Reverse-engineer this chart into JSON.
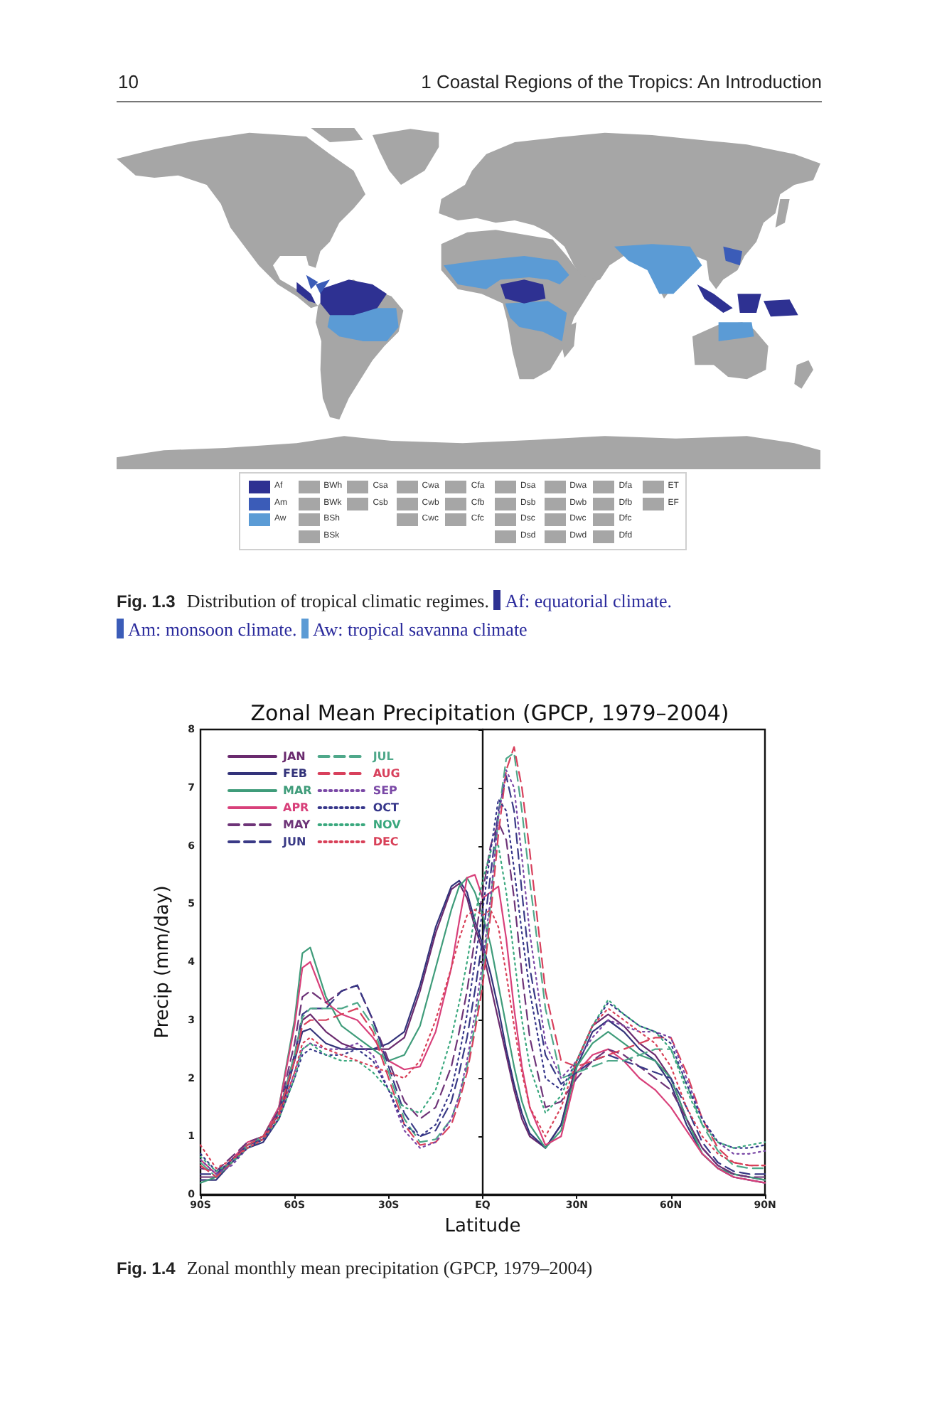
{
  "chart_data": [
    {
      "type": "other",
      "categories": [
        "Af",
        "Am",
        "Aw",
        null,
        "BWh",
        "BWk",
        "BSh",
        "BSk",
        "Csa",
        "Csb",
        null,
        null,
        "Cwa",
        "Cwb",
        "Cwc",
        null,
        "Cfa",
        "Cfb",
        "Cfc",
        null,
        "Dsa",
        "Dsb",
        "Dsc",
        "Dsd",
        "Dwa",
        "Dwb",
        "Dwc",
        "Dwd",
        "Dfa",
        "Dfb",
        "Dfc",
        "Dfd",
        "ET",
        "EF",
        null,
        null
      ],
      "colors": [
        "#2e3192",
        "#3b5cb8",
        "#5b9bd5",
        null,
        "#a6a6a6",
        "#a6a6a6",
        "#a6a6a6",
        "#a6a6a6",
        "#a6a6a6",
        "#a6a6a6",
        null,
        null,
        "#a6a6a6",
        "#a6a6a6",
        "#a6a6a6",
        null,
        "#a6a6a6",
        "#a6a6a6",
        "#a6a6a6",
        null,
        "#a6a6a6",
        "#a6a6a6",
        "#a6a6a6",
        "#a6a6a6",
        "#a6a6a6",
        "#a6a6a6",
        "#a6a6a6",
        "#a6a6a6",
        "#a6a6a6",
        "#a6a6a6",
        "#a6a6a6",
        "#a6a6a6",
        "#a6a6a6",
        "#a6a6a6",
        null,
        null
      ],
      "annotations": [
        "10",
        "1 Coastal Regions of the Tropics: An Introduction",
        "Fig. 1.3",
        "Distribution of tropical climatic regimes.",
        "Af: equatorial climate.",
        "Am: monsoon climate.",
        "Aw: tropical savanna climate"
      ]
    },
    {
      "type": "line",
      "title": "Zonal Mean Precipitation (GPCP, 1979–2004)",
      "xlabel": "Latitude",
      "ylabel": "Precip (mm/day)",
      "x": [
        -90,
        -85,
        -80,
        -75,
        -70,
        -65,
        -60,
        -57.5,
        -55,
        -50,
        -45,
        -40,
        -35,
        -30,
        -25,
        -20,
        -15,
        -10,
        -7.5,
        -5,
        -2.5,
        0,
        2.5,
        5,
        7.5,
        10,
        12.5,
        15,
        20,
        25,
        30,
        35,
        40,
        45,
        50,
        55,
        60,
        65,
        70,
        75,
        80,
        85,
        90
      ],
      "xlim": [
        -90,
        90
      ],
      "xticks": [
        {
          "value": -90,
          "label": "90S"
        },
        {
          "value": -60,
          "label": "60S"
        },
        {
          "value": -30,
          "label": "30S"
        },
        {
          "value": 0,
          "label": "EQ"
        },
        {
          "value": 30,
          "label": "30N"
        },
        {
          "value": 60,
          "label": "60N"
        },
        {
          "value": 90,
          "label": "90N"
        }
      ],
      "ylim": [
        0,
        8
      ],
      "yticks": [
        0,
        1,
        2,
        3,
        4,
        5,
        6,
        7,
        8
      ],
      "legend": "top left",
      "series": [
        {
          "name": "JAN",
          "color": "#6a2a6e",
          "line_style": "solid",
          "values": [
            0.3,
            0.3,
            0.6,
            0.85,
            0.95,
            1.4,
            2.4,
            3.0,
            3.1,
            2.8,
            2.6,
            2.5,
            2.5,
            2.5,
            2.7,
            3.5,
            4.5,
            5.25,
            5.35,
            5.1,
            4.6,
            4.2,
            3.6,
            3.0,
            2.4,
            1.8,
            1.3,
            1.0,
            0.8,
            1.2,
            2.3,
            2.9,
            3.1,
            2.9,
            2.6,
            2.4,
            2.0,
            1.3,
            0.8,
            0.5,
            0.35,
            0.3,
            0.25
          ]
        },
        {
          "name": "FEB",
          "color": "#33337a",
          "line_style": "solid",
          "values": [
            0.25,
            0.25,
            0.55,
            0.8,
            0.9,
            1.3,
            2.3,
            2.8,
            2.85,
            2.6,
            2.5,
            2.5,
            2.5,
            2.6,
            2.8,
            3.6,
            4.6,
            5.3,
            5.4,
            5.2,
            4.7,
            4.3,
            3.8,
            3.2,
            2.5,
            1.9,
            1.4,
            1.05,
            0.8,
            1.2,
            2.2,
            2.8,
            3.0,
            2.8,
            2.5,
            2.3,
            1.9,
            1.2,
            0.7,
            0.45,
            0.3,
            0.25,
            0.2
          ]
        },
        {
          "name": "MAR",
          "color": "#3f9c7a",
          "line_style": "solid",
          "values": [
            0.2,
            0.3,
            0.55,
            0.85,
            1.0,
            1.5,
            3.0,
            4.15,
            4.25,
            3.4,
            2.9,
            2.7,
            2.5,
            2.3,
            2.4,
            2.9,
            3.9,
            4.9,
            5.3,
            5.45,
            5.2,
            4.8,
            4.3,
            3.6,
            2.9,
            2.2,
            1.6,
            1.2,
            0.8,
            1.1,
            2.2,
            2.6,
            2.8,
            2.6,
            2.4,
            2.3,
            2.0,
            1.3,
            0.7,
            0.45,
            0.35,
            0.3,
            0.25
          ]
        },
        {
          "name": "APR",
          "color": "#d8407a",
          "line_style": "solid",
          "values": [
            0.6,
            0.35,
            0.6,
            0.9,
            1.0,
            1.5,
            2.9,
            3.9,
            4.0,
            3.3,
            3.1,
            3.0,
            2.7,
            2.3,
            2.15,
            2.2,
            2.8,
            3.9,
            4.7,
            5.45,
            5.5,
            5.1,
            5.2,
            5.3,
            4.4,
            3.2,
            2.2,
            1.5,
            0.85,
            1.0,
            2.1,
            2.4,
            2.5,
            2.3,
            2.0,
            1.8,
            1.5,
            1.1,
            0.7,
            0.45,
            0.3,
            0.25,
            0.2
          ]
        },
        {
          "name": "MAY",
          "color": "#6e3478",
          "line_style": "dashed",
          "values": [
            0.45,
            0.4,
            0.65,
            0.9,
            1.0,
            1.45,
            2.6,
            3.4,
            3.5,
            3.3,
            3.5,
            3.6,
            3.0,
            2.3,
            1.6,
            1.3,
            1.5,
            2.2,
            2.8,
            3.5,
            4.4,
            5.2,
            6.0,
            6.4,
            6.1,
            5.1,
            3.8,
            2.7,
            1.5,
            1.6,
            2.0,
            2.3,
            2.5,
            2.4,
            2.2,
            2.0,
            1.8,
            1.3,
            0.8,
            0.5,
            0.35,
            0.3,
            0.3
          ]
        },
        {
          "name": "JUN",
          "color": "#3a3a86",
          "line_style": "dashed",
          "values": [
            0.35,
            0.35,
            0.6,
            0.85,
            0.95,
            1.4,
            2.4,
            3.1,
            3.2,
            3.2,
            3.5,
            3.6,
            3.0,
            2.2,
            1.4,
            1.0,
            1.1,
            1.6,
            2.1,
            2.7,
            3.5,
            4.4,
            5.5,
            6.6,
            7.2,
            6.6,
            5.2,
            3.9,
            2.4,
            1.9,
            2.1,
            2.3,
            2.4,
            2.3,
            2.2,
            2.1,
            2.0,
            1.5,
            0.9,
            0.55,
            0.4,
            0.35,
            0.35
          ]
        },
        {
          "name": "JUL",
          "color": "#4fa88a",
          "line_style": "dashed",
          "values": [
            0.55,
            0.3,
            0.55,
            0.85,
            1.0,
            1.4,
            2.4,
            3.05,
            3.2,
            3.2,
            3.2,
            3.3,
            2.9,
            2.1,
            1.3,
            0.9,
            0.95,
            1.3,
            1.7,
            2.2,
            2.9,
            3.8,
            5.0,
            6.5,
            7.5,
            7.6,
            6.6,
            5.4,
            3.2,
            2.0,
            2.1,
            2.2,
            2.3,
            2.3,
            2.4,
            2.5,
            2.5,
            1.9,
            1.2,
            0.75,
            0.5,
            0.45,
            0.45
          ]
        },
        {
          "name": "AUG",
          "color": "#d8405c",
          "line_style": "dashed",
          "values": [
            0.5,
            0.3,
            0.55,
            0.85,
            1.0,
            1.4,
            2.3,
            2.9,
            3.0,
            3.0,
            3.1,
            3.2,
            2.8,
            2.0,
            1.2,
            0.85,
            0.9,
            1.2,
            1.6,
            2.1,
            2.8,
            3.6,
            4.8,
            6.2,
            7.3,
            7.7,
            7.0,
            5.9,
            3.5,
            2.3,
            2.2,
            2.3,
            2.4,
            2.5,
            2.6,
            2.7,
            2.7,
            2.1,
            1.3,
            0.8,
            0.55,
            0.5,
            0.5
          ]
        },
        {
          "name": "SEP",
          "color": "#7a48a6",
          "line_style": "dotted",
          "values": [
            0.6,
            0.35,
            0.5,
            0.8,
            0.95,
            1.3,
            2.1,
            2.5,
            2.6,
            2.5,
            2.5,
            2.6,
            2.4,
            1.8,
            1.1,
            0.8,
            0.9,
            1.3,
            1.7,
            2.3,
            3.1,
            4.0,
            5.1,
            6.5,
            7.3,
            7.0,
            5.8,
            4.5,
            2.6,
            2.0,
            2.3,
            2.7,
            3.0,
            2.9,
            2.8,
            2.8,
            2.7,
            2.0,
            1.3,
            0.9,
            0.7,
            0.7,
            0.75
          ]
        },
        {
          "name": "OCT",
          "color": "#36368a",
          "line_style": "dotted",
          "values": [
            0.7,
            0.4,
            0.55,
            0.8,
            0.95,
            1.3,
            2.0,
            2.4,
            2.5,
            2.4,
            2.4,
            2.5,
            2.3,
            1.8,
            1.2,
            1.0,
            1.2,
            1.8,
            2.4,
            3.1,
            4.0,
            4.9,
            5.9,
            6.8,
            6.6,
            5.6,
            4.5,
            3.5,
            2.0,
            1.8,
            2.3,
            2.9,
            3.3,
            3.1,
            2.9,
            2.8,
            2.6,
            1.9,
            1.3,
            0.9,
            0.8,
            0.8,
            0.85
          ]
        },
        {
          "name": "NOV",
          "color": "#3aa87e",
          "line_style": "dotted",
          "values": [
            0.65,
            0.4,
            0.55,
            0.8,
            0.95,
            1.3,
            2.0,
            2.5,
            2.6,
            2.4,
            2.3,
            2.3,
            2.1,
            1.8,
            1.5,
            1.4,
            1.8,
            2.7,
            3.3,
            4.0,
            4.8,
            5.4,
            5.9,
            6.0,
            5.2,
            4.1,
            3.0,
            2.2,
            1.4,
            1.7,
            2.3,
            2.9,
            3.35,
            3.1,
            2.9,
            2.8,
            2.5,
            1.8,
            1.2,
            0.9,
            0.8,
            0.85,
            0.9
          ]
        },
        {
          "name": "DEC",
          "color": "#d84058",
          "line_style": "dotted",
          "values": [
            0.85,
            0.45,
            0.6,
            0.8,
            0.95,
            1.35,
            2.1,
            2.6,
            2.7,
            2.5,
            2.4,
            2.3,
            2.2,
            2.1,
            2.0,
            2.3,
            3.0,
            3.9,
            4.4,
            4.8,
            4.9,
            4.8,
            4.9,
            4.6,
            3.8,
            2.9,
            2.1,
            1.5,
            1.0,
            1.5,
            2.3,
            2.9,
            3.2,
            3.0,
            2.8,
            2.6,
            2.2,
            1.5,
            1.0,
            0.7,
            0.55,
            0.5,
            0.5
          ]
        }
      ],
      "annotations": [
        "Fig. 1.4",
        "Zonal monthly mean precipitation (GPCP, 1979–2004)"
      ]
    }
  ]
}
